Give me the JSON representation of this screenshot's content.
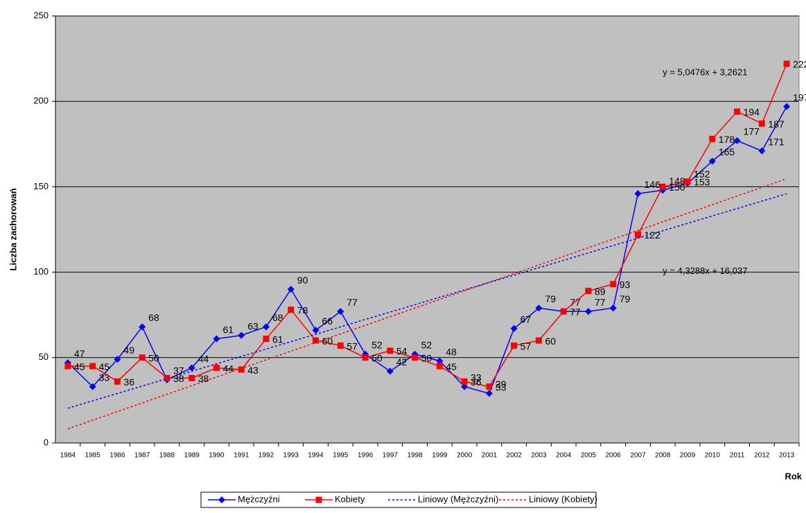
{
  "chart_data": {
    "type": "line",
    "y_label": "Liczba zachorowań",
    "x_label": "Rok",
    "categories": [
      "1984",
      "1985",
      "1986",
      "1987",
      "1988",
      "1989",
      "1990",
      "1991",
      "1992",
      "1993",
      "1994",
      "1995",
      "1996",
      "1997",
      "1998",
      "1999",
      "2000",
      "2001",
      "2002",
      "2003",
      "2004",
      "2005",
      "2006",
      "2007",
      "2008",
      "2009",
      "2010",
      "2011",
      "2012",
      "2013"
    ],
    "ylim": [
      0,
      250
    ],
    "yticks": [
      0,
      50,
      100,
      150,
      200,
      250
    ],
    "grid": true,
    "legend": "bottom",
    "series": [
      {
        "name": "Mężczyźni",
        "color": "#0000ff",
        "marker": "diamond",
        "values": [
          47,
          33,
          49,
          68,
          37,
          44,
          61,
          63,
          68,
          90,
          66,
          77,
          52,
          42,
          52,
          48,
          33,
          29,
          67,
          79,
          77,
          77,
          79,
          146,
          148,
          152,
          165,
          177,
          171,
          197
        ]
      },
      {
        "name": "Kobiety",
        "color": "#ff0000",
        "marker": "square",
        "values": [
          45,
          45,
          36,
          50,
          38,
          38,
          44,
          43,
          61,
          78,
          60,
          57,
          50,
          54,
          50,
          45,
          36,
          33,
          57,
          60,
          77,
          89,
          93,
          122,
          150,
          153,
          178,
          194,
          187,
          222
        ]
      },
      {
        "name": "Liniowy (Mężczyźni)",
        "color": "#0000ff",
        "trend": true,
        "slope": 4.3288,
        "intercept": 16.037,
        "equation": "y = 4,3288x + 16,037"
      },
      {
        "name": "Liniowy (Kobiety)",
        "color": "#ff0000",
        "trend": true,
        "slope": 5.0476,
        "intercept": 3.2621,
        "equation": "y = 5,0476x + 3,2621"
      }
    ]
  }
}
